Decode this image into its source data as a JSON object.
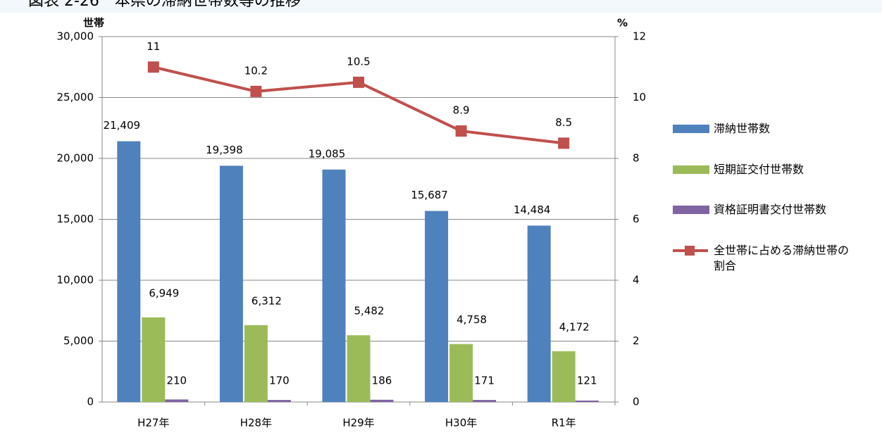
{
  "chart_data": {
    "type": "bar",
    "title": "図表 2-26　本県の滞納世帯数等の推移",
    "y_label": "世帯",
    "y2_label": "%",
    "categories": [
      "H27年",
      "H28年",
      "H29年",
      "H30年",
      "R1年"
    ],
    "series": [
      {
        "name": "滞納世帯数",
        "color": "#4f81bd",
        "type": "bar",
        "values": [
          21409,
          19398,
          19085,
          15687,
          14484
        ],
        "value_labels": [
          "21,409",
          "19,398",
          "19,085",
          "15,687",
          "14,484"
        ]
      },
      {
        "name": "短期証交付世帯数",
        "color": "#9bbb59",
        "type": "bar",
        "values": [
          6949,
          6312,
          5482,
          4758,
          4172
        ],
        "value_labels": [
          "6,949",
          "6,312",
          "5,482",
          "4,758",
          "4,172"
        ]
      },
      {
        "name": "資格証明書交付世帯数",
        "color": "#8064a2",
        "type": "bar",
        "values": [
          210,
          170,
          186,
          171,
          121
        ]
      },
      {
        "name": "全世帯に占める滞納世帯の割合",
        "color": "#c0504d",
        "type": "line",
        "axis": "y2",
        "values": [
          11,
          10.2,
          10.5,
          8.9,
          8.5
        ]
      }
    ],
    "ylim": [
      0,
      30000
    ],
    "yticks": [
      0,
      {
        "value": 5000,
        "label": "5,000"
      },
      {
        "value": 10000,
        "label": "10,000"
      },
      {
        "value": 15000,
        "label": "15,000"
      },
      {
        "value": 20000,
        "label": "20,000"
      },
      {
        "value": 25000,
        "label": "25,000"
      },
      {
        "value": 30000,
        "label": "30,000"
      }
    ],
    "y2lim": [
      0,
      12
    ],
    "y2ticks": [
      0,
      2,
      4,
      6,
      8,
      10,
      12
    ],
    "grid": true
  }
}
